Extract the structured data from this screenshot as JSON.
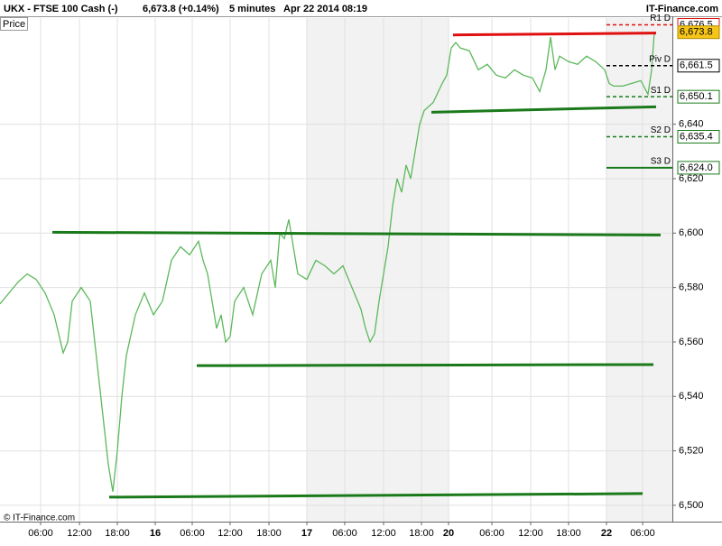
{
  "chart_data": {
    "type": "line",
    "title": "UKX - FTSE 100 Cash (-)",
    "quote": "6,673.8 (+0.14%)",
    "interval": "5 minutes",
    "timestamp": "Apr 22 2014 08:19",
    "brand": "IT-Finance.com",
    "ylabel": "Price",
    "copyright": "© IT-Finance.com",
    "xlim": [
      0,
      745
    ],
    "ylim": [
      6494,
      6679
    ],
    "yticks": [
      {
        "value": 6500,
        "label": "6,500"
      },
      {
        "value": 6520,
        "label": "6,520"
      },
      {
        "value": 6540,
        "label": "6,540"
      },
      {
        "value": 6560,
        "label": "6,560"
      },
      {
        "value": 6580,
        "label": "6,580"
      },
      {
        "value": 6600,
        "label": "6,600"
      },
      {
        "value": 6620,
        "label": "6,620"
      },
      {
        "value": 6640,
        "label": "6,640"
      }
    ],
    "xticks": [
      {
        "value": 45,
        "label": "06:00"
      },
      {
        "value": 88,
        "label": "12:00"
      },
      {
        "value": 130,
        "label": "18:00"
      },
      {
        "value": 172,
        "label": "16"
      },
      {
        "value": 213,
        "label": "06:00"
      },
      {
        "value": 255,
        "label": "12:00"
      },
      {
        "value": 298,
        "label": "18:00"
      },
      {
        "value": 340,
        "label": "17"
      },
      {
        "value": 382,
        "label": "06:00"
      },
      {
        "value": 425,
        "label": "12:00"
      },
      {
        "value": 467,
        "label": "18:00"
      },
      {
        "value": 497,
        "label": "20"
      },
      {
        "value": 545,
        "label": "06:00"
      },
      {
        "value": 588,
        "label": "12:00"
      },
      {
        "value": 630,
        "label": "18:00"
      },
      {
        "value": 672,
        "label": "22"
      },
      {
        "value": 712,
        "label": "06:00"
      }
    ],
    "grid": true,
    "series": [
      {
        "name": "UKX",
        "color": "#5cb85c",
        "x": [
          0,
          10,
          20,
          30,
          40,
          50,
          60,
          70,
          75,
          80,
          90,
          100,
          105,
          110,
          115,
          120,
          125,
          130,
          135,
          140,
          150,
          160,
          170,
          180,
          190,
          200,
          210,
          220,
          225,
          230,
          235,
          240,
          245,
          250,
          255,
          260,
          270,
          280,
          290,
          300,
          305,
          310,
          315,
          320,
          325,
          330,
          340,
          350,
          360,
          370,
          380,
          390,
          400,
          405,
          410,
          415,
          420,
          425,
          430,
          435,
          440,
          445,
          450,
          455,
          460,
          465,
          470,
          480,
          490,
          495,
          500,
          505,
          510,
          520,
          530,
          540,
          550,
          560,
          570,
          580,
          590,
          598,
          605,
          610,
          615,
          620,
          630,
          640,
          650,
          660,
          670,
          675,
          680,
          690,
          700,
          710,
          718,
          722,
          725
        ],
        "values": [
          6574,
          6578,
          6582,
          6585,
          6583,
          6578,
          6570,
          6556,
          6560,
          6575,
          6580,
          6575,
          6560,
          6545,
          6530,
          6515,
          6505,
          6520,
          6540,
          6555,
          6570,
          6578,
          6570,
          6575,
          6590,
          6595,
          6592,
          6597,
          6590,
          6585,
          6575,
          6565,
          6570,
          6560,
          6562,
          6575,
          6580,
          6570,
          6585,
          6590,
          6580,
          6600,
          6598,
          6605,
          6595,
          6585,
          6583,
          6590,
          6588,
          6585,
          6588,
          6580,
          6572,
          6565,
          6560,
          6563,
          6575,
          6585,
          6595,
          6610,
          6620,
          6615,
          6625,
          6620,
          6630,
          6640,
          6645,
          6648,
          6655,
          6658,
          6668,
          6670,
          6668,
          6667,
          6660,
          6662,
          6658,
          6657,
          6660,
          6658,
          6657,
          6652,
          6660,
          6672,
          6660,
          6665,
          6663,
          6662,
          6665,
          6663,
          6660,
          6655,
          6654,
          6654,
          6655,
          6656,
          6651,
          6660,
          6673.8
        ]
      }
    ],
    "trendlines": [
      {
        "color": "#1a7a1a",
        "x": [
          58,
          732
        ],
        "values": [
          6600.3,
          6599.3
        ]
      },
      {
        "color": "#1a7a1a",
        "x": [
          218,
          724
        ],
        "values": [
          6551.3,
          6551.7
        ]
      },
      {
        "color": "#1a7a1a",
        "x": [
          121,
          712
        ],
        "values": [
          6503.0,
          6504.3
        ]
      },
      {
        "color": "#1a7a1a",
        "x": [
          478,
          727
        ],
        "values": [
          6644.4,
          6646.4
        ]
      },
      {
        "color": "#e01010",
        "x": [
          502,
          727
        ],
        "values": [
          6672.8,
          6673.5
        ]
      }
    ],
    "pivots": [
      {
        "name": "R1 D",
        "value": 6676.5,
        "label": "6,676.5",
        "color": "#e01010",
        "dash": true
      },
      {
        "name": "Piv D",
        "value": 6661.5,
        "label": "6,661.5",
        "color": "#000000",
        "dash": true
      },
      {
        "name": "S1 D",
        "value": 6650.1,
        "label": "6,650.1",
        "color": "#1a7a1a",
        "dash": true
      },
      {
        "name": "S2 D",
        "value": 6635.4,
        "label": "6,635.4",
        "color": "#1a7a1a",
        "dash": true
      },
      {
        "name": "S3 D",
        "value": 6624.0,
        "label": "6,624.0",
        "color": "#1a7a1a",
        "dash": false
      }
    ],
    "last": {
      "value": 6673.8,
      "label": "6,673.8"
    }
  }
}
